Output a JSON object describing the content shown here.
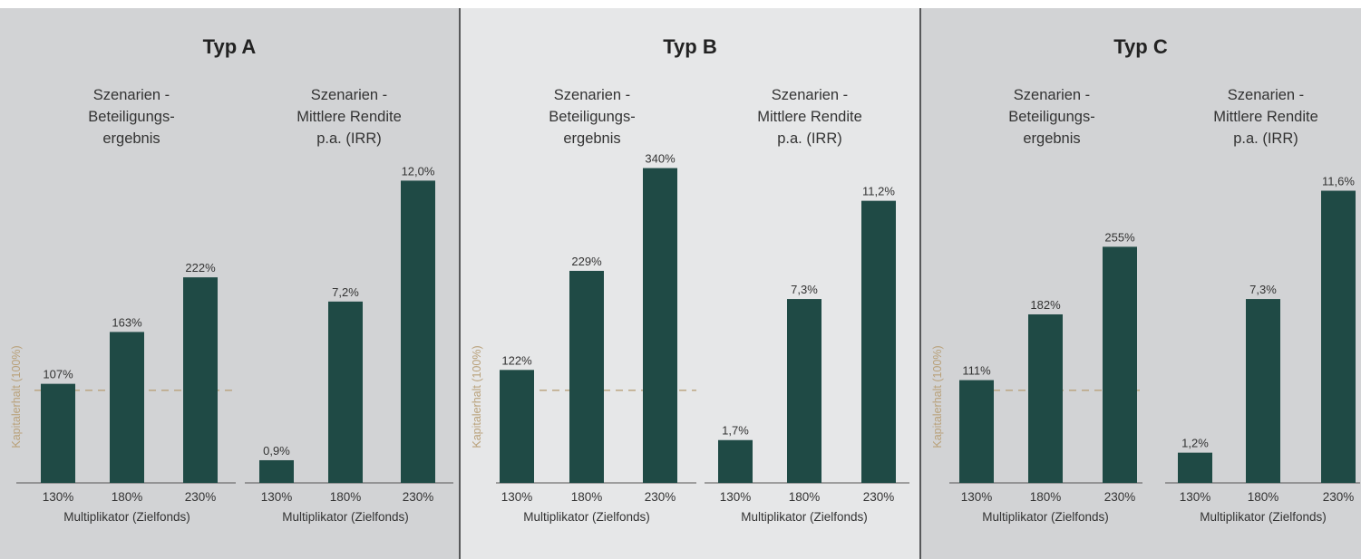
{
  "colors": {
    "bar": "#1f4a45",
    "text": "#333333",
    "reference": "#b9a17a",
    "axis": "#555555"
  },
  "reference": {
    "label": "Kapitalerhalt (100%)",
    "value": 100
  },
  "panels": [
    {
      "title": "Typ A"
    },
    {
      "title": "Typ B"
    },
    {
      "title": "Typ C"
    }
  ],
  "chart_data": [
    {
      "type": "bar",
      "panel": "Typ A",
      "title": [
        "Szenarien -",
        "Beteiligungs-",
        "ergebnis"
      ],
      "xlabel": "Multiplikator (Zielfonds)",
      "ylabel": "Kapitalerhalt (100%)",
      "categories": [
        "130%",
        "180%",
        "230%"
      ],
      "values": [
        107,
        163,
        222
      ],
      "labels": [
        "107%",
        "163%",
        "222%"
      ],
      "ylim": [
        0,
        400
      ],
      "reference_line": 100
    },
    {
      "type": "bar",
      "panel": "Typ A",
      "title": [
        "Szenarien -",
        "Mittlere Rendite",
        "p.a. (IRR)"
      ],
      "xlabel": "Multiplikator (Zielfonds)",
      "categories": [
        "130%",
        "180%",
        "230%"
      ],
      "values": [
        0.9,
        7.2,
        12.0
      ],
      "labels": [
        "0,9%",
        "7,2%",
        "12,0%"
      ],
      "ylim": [
        0,
        12.6
      ]
    },
    {
      "type": "bar",
      "panel": "Typ B",
      "title": [
        "Szenarien -",
        "Beteiligungs-",
        "ergebnis"
      ],
      "xlabel": "Multiplikator (Zielfonds)",
      "ylabel": "Kapitalerhalt (100%)",
      "categories": [
        "130%",
        "180%",
        "230%"
      ],
      "values": [
        122,
        229,
        340
      ],
      "labels": [
        "122%",
        "229%",
        "340%"
      ],
      "ylim": [
        0,
        400
      ],
      "reference_line": 100
    },
    {
      "type": "bar",
      "panel": "Typ B",
      "title": [
        "Szenarien -",
        "Mittlere Rendite",
        "p.a. (IRR)"
      ],
      "xlabel": "Multiplikator (Zielfonds)",
      "categories": [
        "130%",
        "180%",
        "230%"
      ],
      "values": [
        1.7,
        7.3,
        11.2
      ],
      "labels": [
        "1,7%",
        "7,3%",
        "11,2%"
      ],
      "ylim": [
        0,
        12.6
      ]
    },
    {
      "type": "bar",
      "panel": "Typ C",
      "title": [
        "Szenarien -",
        "Beteiligungs-",
        "ergebnis"
      ],
      "xlabel": "Multiplikator (Zielfonds)",
      "ylabel": "Kapitalerhalt (100%)",
      "categories": [
        "130%",
        "180%",
        "230%"
      ],
      "values": [
        111,
        182,
        255
      ],
      "labels": [
        "111%",
        "182%",
        "255%"
      ],
      "ylim": [
        0,
        400
      ],
      "reference_line": 100
    },
    {
      "type": "bar",
      "panel": "Typ C",
      "title": [
        "Szenarien -",
        "Mittlere Rendite",
        "p.a. (IRR)"
      ],
      "xlabel": "Multiplikator (Zielfonds)",
      "categories": [
        "130%",
        "180%",
        "230%"
      ],
      "values": [
        1.2,
        7.3,
        11.6
      ],
      "labels": [
        "1,2%",
        "7,3%",
        "11,6%"
      ],
      "ylim": [
        0,
        12.6
      ]
    }
  ]
}
